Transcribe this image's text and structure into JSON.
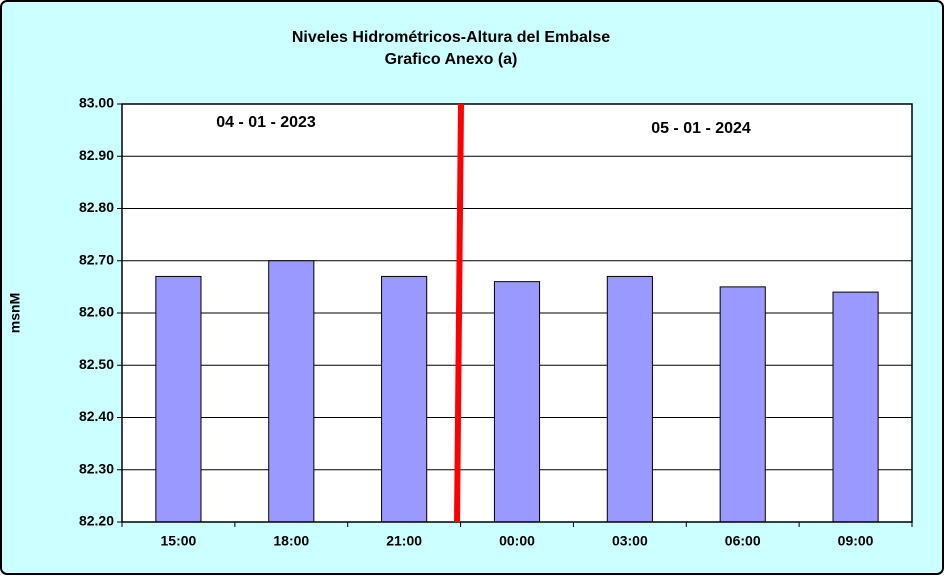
{
  "chart_data": {
    "type": "bar",
    "title": "Niveles Hidrométricos-Altura del Embalse",
    "subtitle": "Grafico Anexo (a)",
    "y_label": "msnM",
    "categories": [
      "15:00",
      "18:00",
      "21:00",
      "00:00",
      "03:00",
      "06:00",
      "09:00"
    ],
    "values": [
      82.67,
      82.7,
      82.67,
      82.66,
      82.67,
      82.65,
      82.64
    ],
    "color": "#9999ff",
    "ylim": [
      82.2,
      83.0
    ],
    "yticks": [
      {
        "value": 82.2,
        "label": "82.20"
      },
      {
        "value": 82.3,
        "label": "82.30"
      },
      {
        "value": 82.4,
        "label": "82.40"
      },
      {
        "value": 82.5,
        "label": "82.50"
      },
      {
        "value": 82.6,
        "label": "82.60"
      },
      {
        "value": 82.7,
        "label": "82.70"
      },
      {
        "value": 82.8,
        "label": "82.80"
      },
      {
        "value": 82.9,
        "label": "82.90"
      },
      {
        "value": 83.0,
        "label": "83.00"
      }
    ],
    "grid": true,
    "annotations": [
      "04 - 01 - 2023",
      "05 - 01 - 2024"
    ]
  }
}
